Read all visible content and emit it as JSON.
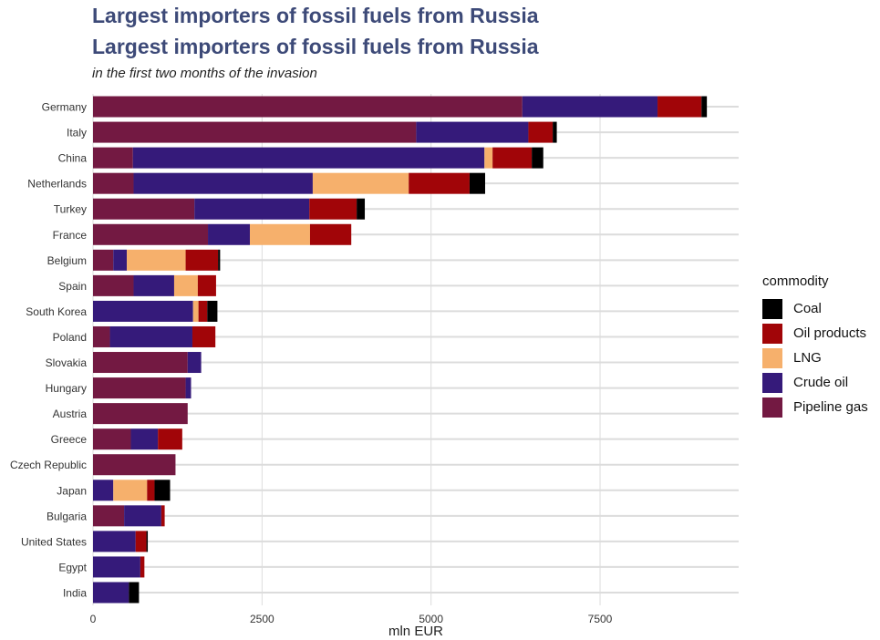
{
  "header": {
    "title_line1": "Largest importers of fossil fuels from Russia",
    "title_line2": "Largest importers of fossil fuels from Russia",
    "subtitle": "in the first two months of the invasion"
  },
  "colors": {
    "Pipeline gas": "#731942",
    "Crude oil": "#351a7a",
    "LNG": "#f6b06c",
    "Oil products": "#a10508",
    "Coal": "#000000",
    "title": "#3d4a78",
    "gridline": "#dcdcdc"
  },
  "chart_data": {
    "type": "bar",
    "orientation": "horizontal",
    "stacked": true,
    "title": "Largest importers of fossil fuels from Russia",
    "subtitle": "in the first two months of the invasion",
    "xlabel": "mln EUR",
    "ylabel": "",
    "xlim": [
      0,
      9550
    ],
    "xticks": [
      0,
      2500,
      5000,
      7500
    ],
    "grid": true,
    "legend_title": "commodity",
    "legend_position": "right",
    "legend_order": [
      "Coal",
      "Oil products",
      "LNG",
      "Crude oil",
      "Pipeline gas"
    ],
    "categories": [
      "Germany",
      "Italy",
      "China",
      "Netherlands",
      "Turkey",
      "France",
      "Belgium",
      "Spain",
      "South Korea",
      "Poland",
      "Slovakia",
      "Hungary",
      "Austria",
      "Greece",
      "Czech Republic",
      "Japan",
      "Bulgaria",
      "United States",
      "Egypt",
      "India"
    ],
    "series": [
      {
        "name": "Pipeline gas",
        "values": [
          6350,
          4780,
          590,
          600,
          1500,
          1700,
          300,
          600,
          0,
          250,
          1400,
          1370,
          1400,
          560,
          1220,
          0,
          460,
          0,
          0,
          0
        ]
      },
      {
        "name": "Crude oil",
        "values": [
          2000,
          1660,
          5200,
          2650,
          1700,
          620,
          200,
          600,
          1480,
          1220,
          200,
          80,
          0,
          400,
          0,
          300,
          550,
          630,
          700,
          530
        ]
      },
      {
        "name": "LNG",
        "values": [
          0,
          0,
          120,
          1420,
          0,
          890,
          870,
          350,
          80,
          0,
          0,
          0,
          0,
          0,
          0,
          500,
          0,
          0,
          0,
          0
        ]
      },
      {
        "name": "Oil products",
        "values": [
          650,
          360,
          580,
          900,
          700,
          610,
          480,
          270,
          130,
          340,
          0,
          0,
          0,
          360,
          0,
          110,
          50,
          160,
          60,
          0
        ]
      },
      {
        "name": "Coal",
        "values": [
          80,
          60,
          170,
          230,
          120,
          0,
          30,
          0,
          150,
          0,
          0,
          0,
          0,
          0,
          0,
          230,
          0,
          20,
          0,
          150
        ]
      }
    ]
  }
}
